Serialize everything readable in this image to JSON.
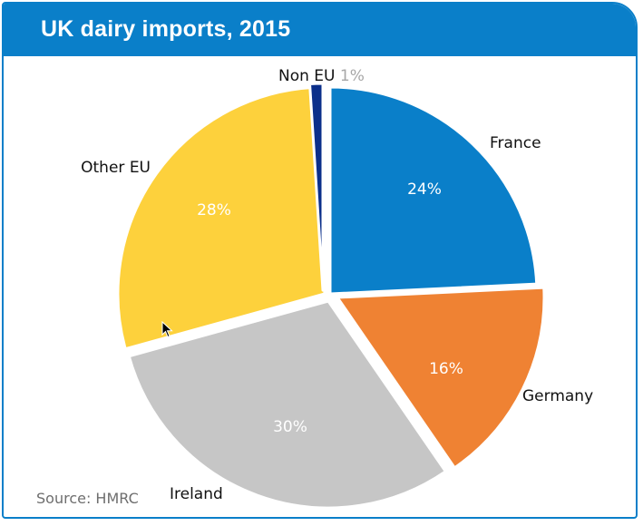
{
  "title": "UK dairy imports, 2015",
  "source": "Source: HMRC",
  "chart_data": {
    "type": "pie",
    "title": "UK dairy imports, 2015",
    "unit": "%",
    "legend": "none",
    "slices": [
      {
        "name": "France",
        "value": 24,
        "label": "24%",
        "color": "#0a7fc9",
        "label_inside": true
      },
      {
        "name": "Germany",
        "value": 16,
        "label": "16%",
        "color": "#ef8233",
        "label_inside": true
      },
      {
        "name": "Ireland",
        "value": 30,
        "label": "30%",
        "color": "#c6c6c6",
        "label_inside": true
      },
      {
        "name": "Other EU",
        "value": 28,
        "label": "28%",
        "color": "#fdd13c",
        "label_inside": true
      },
      {
        "name": "Non EU",
        "value": 1,
        "label": "1%",
        "color": "#0b2f8a",
        "label_inside": false
      }
    ]
  }
}
